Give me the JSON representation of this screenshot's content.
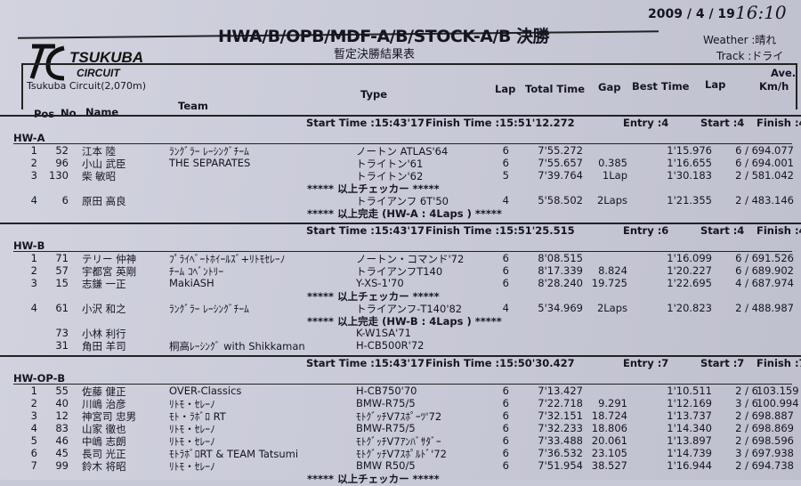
{
  "header": {
    "title": "HWA/B/OPB/MDF-A/B/STOCK-A/B 決勝",
    "subtitle": "暫定決勝結果表",
    "date": "2009 / 4 / 19",
    "handwritten_time": "16:10",
    "weather": "Weather :晴れ",
    "track": "Track :ドライ",
    "logo_main": "TSUKUBA",
    "logo_sub": "CIRCUIT",
    "circuit": "Tsukuba Circuit(2,070m)"
  },
  "columns": {
    "pos": "Pos",
    "no": "No",
    "name": "Name",
    "team": "Team",
    "type": "Type",
    "lap": "Lap",
    "total": "Total Time",
    "gap": "Gap",
    "best": "Best Time",
    "best_lap": "Lap",
    "ave": "Ave.",
    "ave_unit": "Km/h"
  },
  "sections": [
    {
      "start": "Start Time :15:43'17",
      "finish": "Finish Time :15:51'12.272",
      "entry": "Entry :4",
      "started": "Start :4",
      "finished": "Finish :4",
      "class": "HW-A",
      "lines": [
        {
          "pos": "1",
          "no": "52",
          "name": "江本 陸",
          "team": "ﾗﾝｸﾞﾗｰ ﾚｰｼﾝｸﾞﾁｰﾑ",
          "type": "ノートン ATLAS'64",
          "lap": "6",
          "total": "7'55.272",
          "gap": "",
          "best": "1'15.976",
          "blap": "6 / 6",
          "ave": "94.077"
        },
        {
          "pos": "2",
          "no": "96",
          "name": "小山 武臣",
          "team": "THE SEPARATES",
          "type": "トライトン'61",
          "lap": "6",
          "total": "7'55.657",
          "gap": "0.385",
          "best": "1'16.655",
          "blap": "6 / 6",
          "ave": "94.001"
        },
        {
          "pos": "3",
          "no": "130",
          "name": "柴 敏昭",
          "team": "",
          "type": "トライトン'62",
          "lap": "5",
          "total": "7'39.764",
          "gap": "1Lap",
          "best": "1'30.183",
          "blap": "2 / 5",
          "ave": "81.042"
        },
        {
          "note": "***** 以上チェッカー *****"
        },
        {
          "pos": "4",
          "no": "6",
          "name": "原田 高良",
          "team": "",
          "type": "トライアンフ 6T'50",
          "lap": "4",
          "total": "5'58.502",
          "gap": "2Laps",
          "best": "1'21.355",
          "blap": "2 / 4",
          "ave": "83.146"
        },
        {
          "note": "***** 以上完走 (HW-A : 4Laps ) *****"
        }
      ]
    },
    {
      "start": "Start Time :15:43'17",
      "finish": "Finish Time :15:51'25.515",
      "entry": "Entry :6",
      "started": "Start :4",
      "finished": "Finish :4",
      "class": "HW-B",
      "lines": [
        {
          "pos": "1",
          "no": "71",
          "name": "テリー 仲神",
          "team": "ﾌﾟﾗｲﾍﾞｰﾄﾎｲｰﾙｽﾞ+ﾘﾄﾓｾﾚｰﾉ",
          "type": "ノートン・コマンド'72",
          "lap": "6",
          "total": "8'08.515",
          "gap": "",
          "best": "1'16.099",
          "blap": "6 / 6",
          "ave": "91.526"
        },
        {
          "pos": "2",
          "no": "57",
          "name": "宇都宮 英剛",
          "team": "ﾁｰﾑ ｺﾍﾞﾝﾄﾘｰ",
          "type": "トライアンフT140",
          "lap": "6",
          "total": "8'17.339",
          "gap": "8.824",
          "best": "1'20.227",
          "blap": "6 / 6",
          "ave": "89.902"
        },
        {
          "pos": "3",
          "no": "15",
          "name": "志鎌 一正",
          "team": "MakiASH",
          "type": "Y-XS-1'70",
          "lap": "6",
          "total": "8'28.240",
          "gap": "19.725",
          "best": "1'22.695",
          "blap": "4 / 6",
          "ave": "87.974"
        },
        {
          "note": "***** 以上チェッカー *****"
        },
        {
          "pos": "4",
          "no": "61",
          "name": "小沢 和之",
          "team": "ﾗﾝｸﾞﾗｰ ﾚｰｼﾝｸﾞﾁｰﾑ",
          "type": "トライアンフ-T140'82",
          "lap": "4",
          "total": "5'34.969",
          "gap": "2Laps",
          "best": "1'20.823",
          "blap": "2 / 4",
          "ave": "88.987"
        },
        {
          "note": "***** 以上完走 (HW-B : 4Laps ) *****"
        },
        {
          "pos": "",
          "no": "73",
          "name": "小林 利行",
          "team": "",
          "type": "K-W1SA'71",
          "lap": "",
          "total": "",
          "gap": "",
          "best": "",
          "blap": "",
          "ave": ""
        },
        {
          "pos": "",
          "no": "31",
          "name": "角田 羊司",
          "team": "桐高ﾚｰｼﾝｸﾞ with Shikkaman",
          "type": "H-CB500R'72",
          "lap": "",
          "total": "",
          "gap": "",
          "best": "",
          "blap": "",
          "ave": ""
        }
      ]
    },
    {
      "start": "Start Time :15:43'17",
      "finish": "Finish Time :15:50'30.427",
      "entry": "Entry :7",
      "started": "Start :7",
      "finished": "Finish :7",
      "class": "HW-OP-B",
      "lines": [
        {
          "pos": "1",
          "no": "55",
          "name": "佐藤 健正",
          "team": "OVER-Classics",
          "type": "H-CB750'70",
          "lap": "6",
          "total": "7'13.427",
          "gap": "",
          "best": "1'10.511",
          "blap": "2 / 6",
          "ave": "103.159"
        },
        {
          "pos": "2",
          "no": "40",
          "name": "川嶋 治彦",
          "team": "ﾘﾄﾓ・ｾﾚｰﾉ",
          "type": "BMW-R75/5",
          "lap": "6",
          "total": "7'22.718",
          "gap": "9.291",
          "best": "1'12.169",
          "blap": "3 / 6",
          "ave": "100.994"
        },
        {
          "pos": "3",
          "no": "12",
          "name": "神宮司 忠男",
          "team": "ﾓﾄ・ﾗﾎﾞﾛ RT",
          "type": "ﾓﾄｸﾞｯﾁV7ｽﾎﾟｰﾂ'72",
          "lap": "6",
          "total": "7'32.151",
          "gap": "18.724",
          "best": "1'13.737",
          "blap": "2 / 6",
          "ave": "98.887"
        },
        {
          "pos": "4",
          "no": "83",
          "name": "山家 徹也",
          "team": "ﾘﾄﾓ・ｾﾚｰﾉ",
          "type": "BMW-R75/5",
          "lap": "6",
          "total": "7'32.233",
          "gap": "18.806",
          "best": "1'14.340",
          "blap": "2 / 6",
          "ave": "98.869"
        },
        {
          "pos": "5",
          "no": "46",
          "name": "中嶋 志朗",
          "team": "ﾘﾄﾓ・ｾﾚｰﾉ",
          "type": "ﾓﾄｸﾞｯﾁV7ｱﾝﾊﾞｻﾀﾞｰ",
          "lap": "6",
          "total": "7'33.488",
          "gap": "20.061",
          "best": "1'13.897",
          "blap": "2 / 6",
          "ave": "98.596"
        },
        {
          "pos": "6",
          "no": "45",
          "name": "長司 光正",
          "team": "ﾓﾄﾗﾎﾞﾛRT & TEAM Tatsumi",
          "type": "ﾓﾄｸﾞｯﾁV7ｽﾎﾟﾙﾄﾞ'72",
          "lap": "6",
          "total": "7'36.532",
          "gap": "23.105",
          "best": "1'14.739",
          "blap": "3 / 6",
          "ave": "97.938"
        },
        {
          "pos": "7",
          "no": "99",
          "name": "鈴木 将昭",
          "team": "ﾘﾄﾓ・ｾﾚｰﾉ",
          "type": "BMW R50/5",
          "lap": "6",
          "total": "7'51.954",
          "gap": "38.527",
          "best": "1'16.944",
          "blap": "2 / 6",
          "ave": "94.738"
        },
        {
          "note": "***** 以上チェッカー *****"
        }
      ]
    }
  ]
}
